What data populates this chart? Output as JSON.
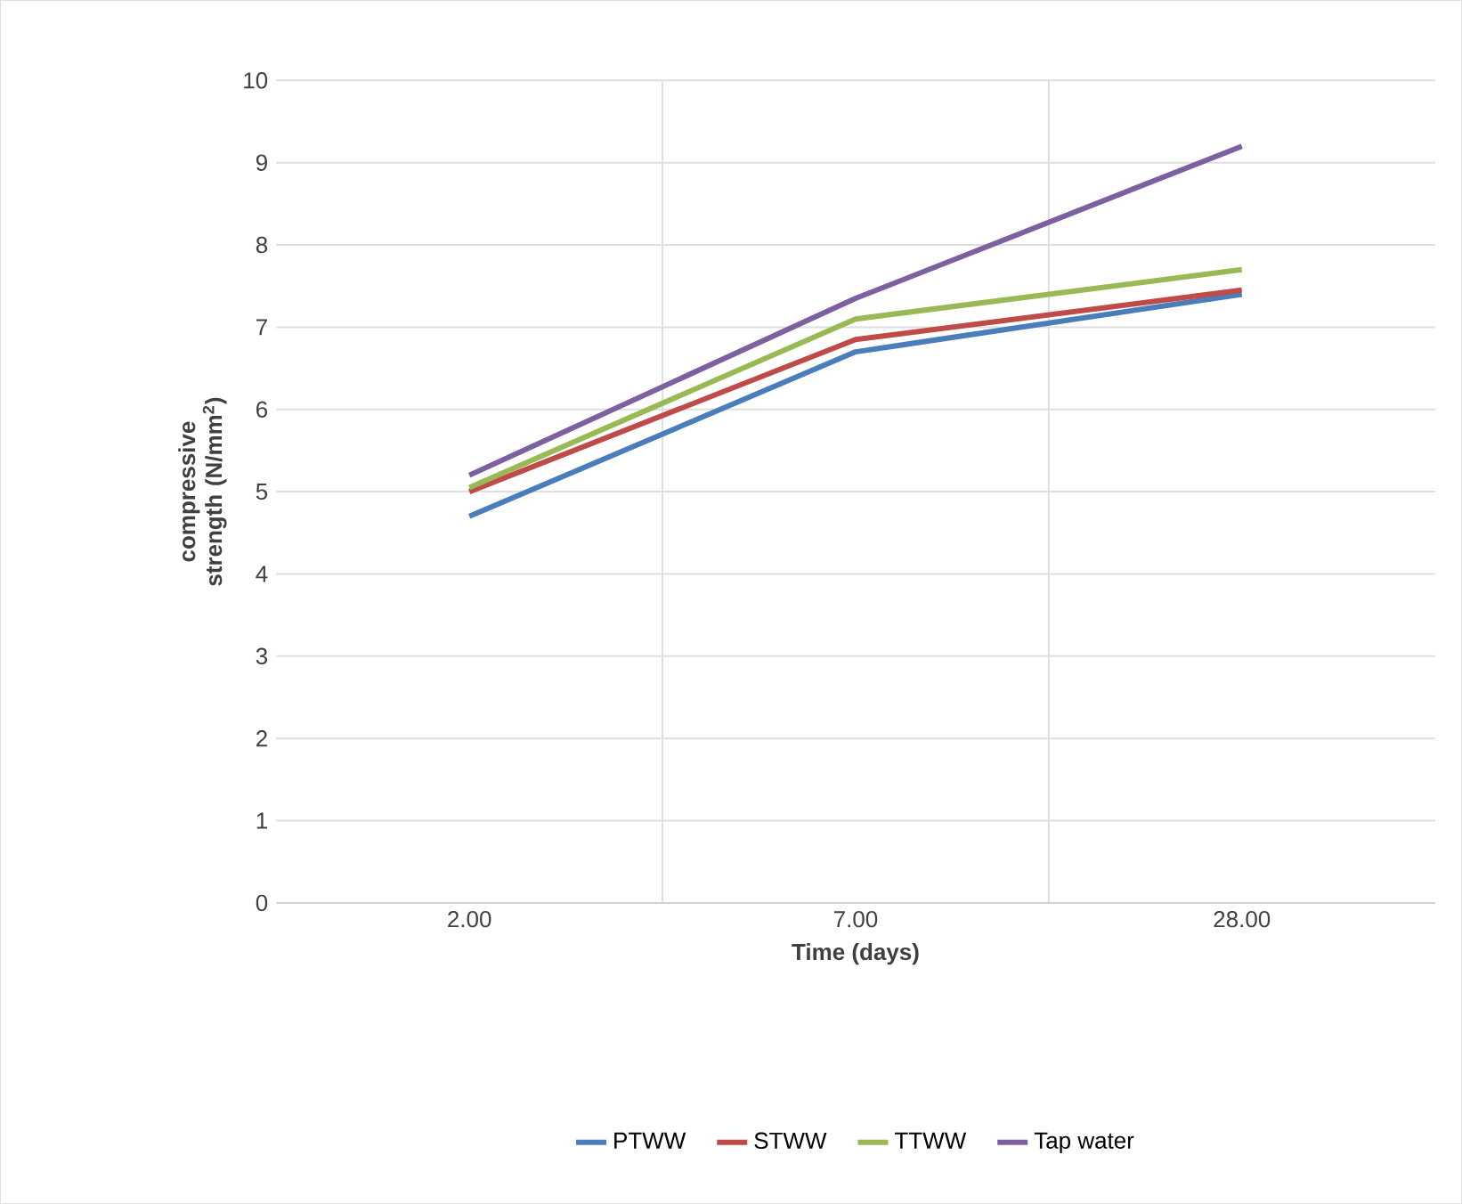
{
  "chart_data": {
    "type": "line",
    "xlabel": "Time (days)",
    "ylabel": "compressive strength (N/mm$^{2}$)",
    "categories": [
      "2.00",
      "7.00",
      "28.00"
    ],
    "series": [
      {
        "name": "PTWW",
        "color": "#4a7ebb",
        "values": [
          4.7,
          6.7,
          7.4
        ]
      },
      {
        "name": "STWW",
        "color": "#be4b48",
        "values": [
          5.0,
          6.85,
          7.45
        ]
      },
      {
        "name": "TTWW",
        "color": "#98b954",
        "values": [
          5.05,
          7.1,
          7.7
        ]
      },
      {
        "name": "Tap water",
        "color": "#7d60a0",
        "values": [
          5.2,
          7.35,
          9.2
        ]
      }
    ],
    "ylim": [
      0,
      10
    ],
    "yticks": [
      0,
      1,
      2,
      3,
      4,
      5,
      6,
      7,
      8,
      9,
      10
    ],
    "grid": true,
    "legend": "bottom",
    "marker": "none",
    "line_style": "solid"
  }
}
